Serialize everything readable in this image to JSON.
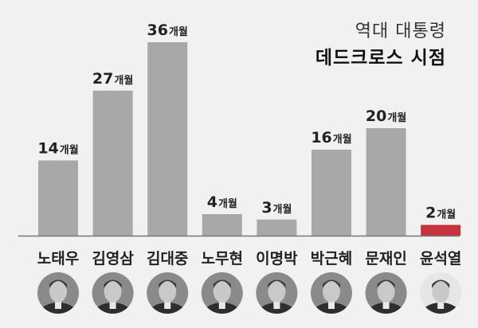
{
  "chart_data": {
    "type": "bar",
    "title_line1": "역대 대통령",
    "title_line2": "데드크로스 시점",
    "unit": "개월",
    "categories": [
      "노태우",
      "김영삼",
      "김대중",
      "노무현",
      "이명박",
      "박근혜",
      "문재인",
      "윤석열"
    ],
    "values": [
      14,
      27,
      36,
      4,
      3,
      16,
      20,
      2
    ],
    "colors": [
      "#a8a8a8",
      "#a8a8a8",
      "#a8a8a8",
      "#a8a8a8",
      "#a8a8a8",
      "#a8a8a8",
      "#a8a8a8",
      "#c5333e"
    ],
    "ylim": [
      0,
      36
    ],
    "grid": false
  }
}
